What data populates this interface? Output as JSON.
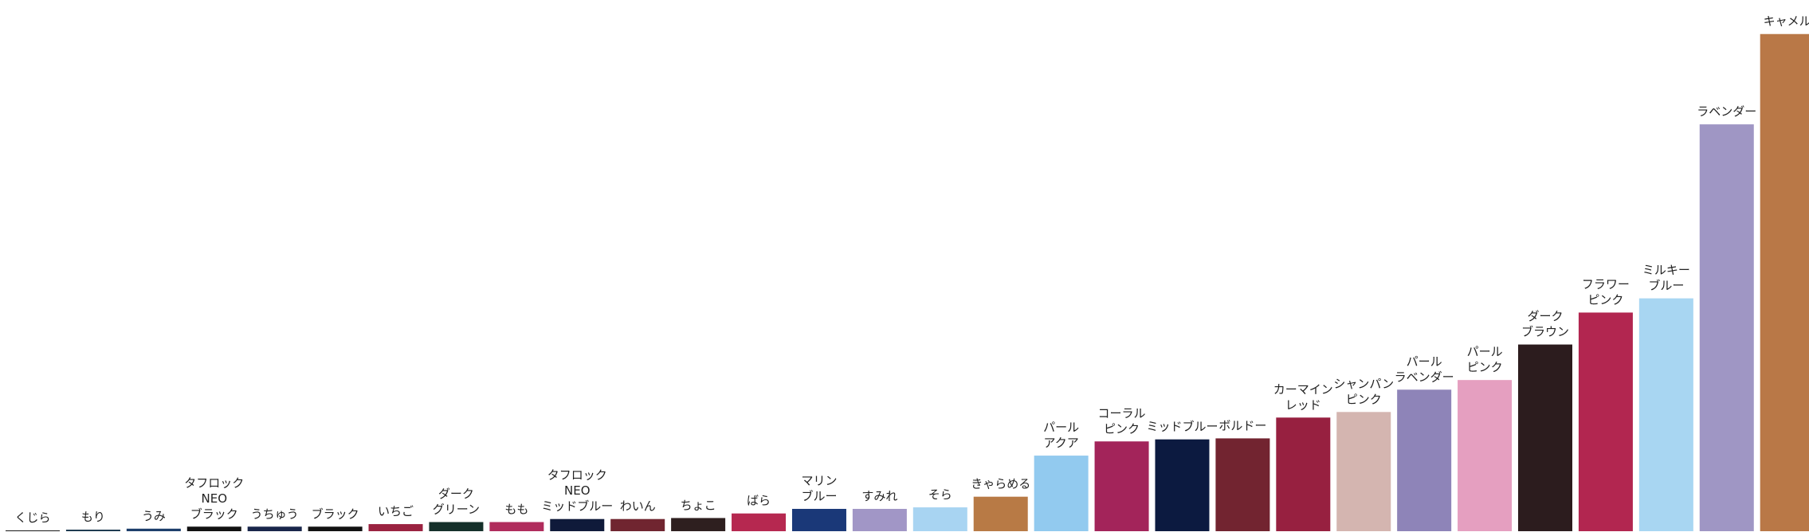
{
  "chart_data": {
    "type": "bar",
    "title": "",
    "xlabel": "",
    "ylabel": "",
    "ylim": [
      0,
      100
    ],
    "grid": false,
    "legend": false,
    "categories": [
      [
        "くじら"
      ],
      [
        "もり"
      ],
      [
        "うみ"
      ],
      [
        "タフロック",
        "NEO",
        "ブラック"
      ],
      [
        "うちゅう"
      ],
      [
        "ブラック"
      ],
      [
        "いちご"
      ],
      [
        "ダーク",
        "グリーン"
      ],
      [
        "もも"
      ],
      [
        "タフロック",
        "NEO",
        "ミッドブルー"
      ],
      [
        "わいん"
      ],
      [
        "ちょこ"
      ],
      [
        "ばら"
      ],
      [
        "マリン",
        "ブルー"
      ],
      [
        "すみれ"
      ],
      [
        "そら"
      ],
      [
        "きゃらめる"
      ],
      [
        "パール",
        "アクア"
      ],
      [
        "コーラル",
        "ピンク"
      ],
      [
        "ミッドブルー"
      ],
      [
        "ボルドー"
      ],
      [
        "カーマイン",
        "レッド"
      ],
      [
        "シャンパン",
        "ピンク"
      ],
      [
        "パール",
        "ラベンダー"
      ],
      [
        "パール",
        "ピンク"
      ],
      [
        "ダーク",
        "ブラウン"
      ],
      [
        "フラワー",
        "ピンク"
      ],
      [
        "ミルキー",
        "ブルー"
      ],
      [
        "ラベンダー"
      ],
      [
        "キャメル"
      ]
    ],
    "values": [
      0.1,
      0.3,
      0.5,
      0.9,
      0.9,
      0.9,
      1.4,
      1.8,
      1.8,
      2.4,
      2.4,
      2.6,
      3.5,
      4.4,
      4.4,
      4.7,
      6.8,
      14.9,
      17.7,
      18.1,
      18.3,
      22.4,
      23.5,
      27.9,
      29.8,
      36.8,
      43.1,
      45.9,
      80.2,
      98.0
    ],
    "colors": [
      "#1a1a1a",
      "#16334a",
      "#1d3e6b",
      "#111111",
      "#18254a",
      "#121212",
      "#9a2240",
      "#15302a",
      "#b02c5c",
      "#0f1a3a",
      "#702530",
      "#2e1f1f",
      "#b62850",
      "#1a3878",
      "#a196c6",
      "#a8d4f2",
      "#b87a45",
      "#92caef",
      "#a3245a",
      "#0c1a40",
      "#722430",
      "#972040",
      "#d4b5b0",
      "#8e84b8",
      "#e59fc0",
      "#2c1c1e",
      "#b22650",
      "#a8d6f2",
      "#9f96c4",
      "#b97847"
    ]
  }
}
